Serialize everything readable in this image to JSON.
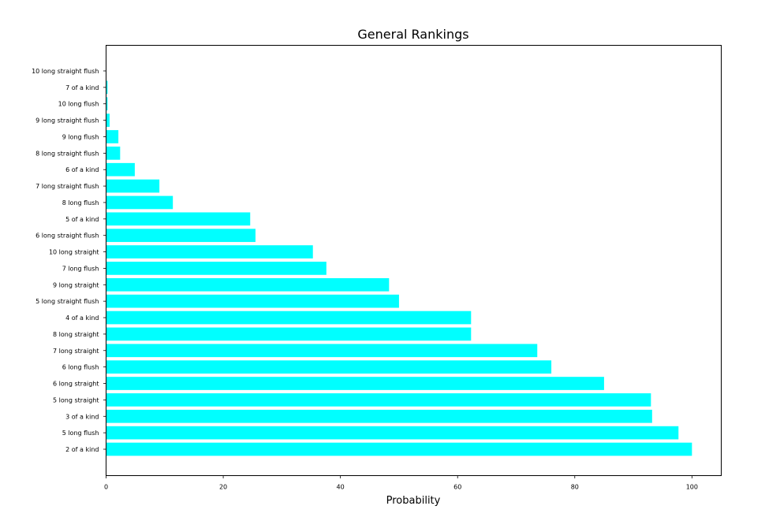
{
  "chart_data": {
    "type": "bar",
    "orientation": "horizontal",
    "title": "General Rankings",
    "xlabel": "Probability",
    "ylabel": "",
    "xlim": [
      0,
      105
    ],
    "xticks": [
      0,
      20,
      40,
      60,
      80,
      100
    ],
    "bar_color": "#00ffff",
    "grid": false,
    "categories": [
      "2 of a kind",
      "5 long flush",
      "3 of a kind",
      "5 long straight",
      "6 long straight",
      "6 long flush",
      "7 long straight",
      "8 long straight",
      "4 of a kind",
      "5 long straight flush",
      "9 long straight",
      "7 long flush",
      "10 long straight",
      "6 long straight flush",
      "5 of a kind",
      "8 long flush",
      "7 long straight flush",
      "6 of a kind",
      "8 long straight flush",
      "9 long flush",
      "9 long straight flush",
      "10 long flush",
      "7 of a kind",
      "10 long straight flush"
    ],
    "values": [
      100,
      97.7,
      93.2,
      93.0,
      85.0,
      76.0,
      73.6,
      62.3,
      62.3,
      50.0,
      48.3,
      37.6,
      35.3,
      25.5,
      24.6,
      11.4,
      9.1,
      4.9,
      2.4,
      2.1,
      0.6,
      0.25,
      0.25,
      0.03
    ]
  }
}
